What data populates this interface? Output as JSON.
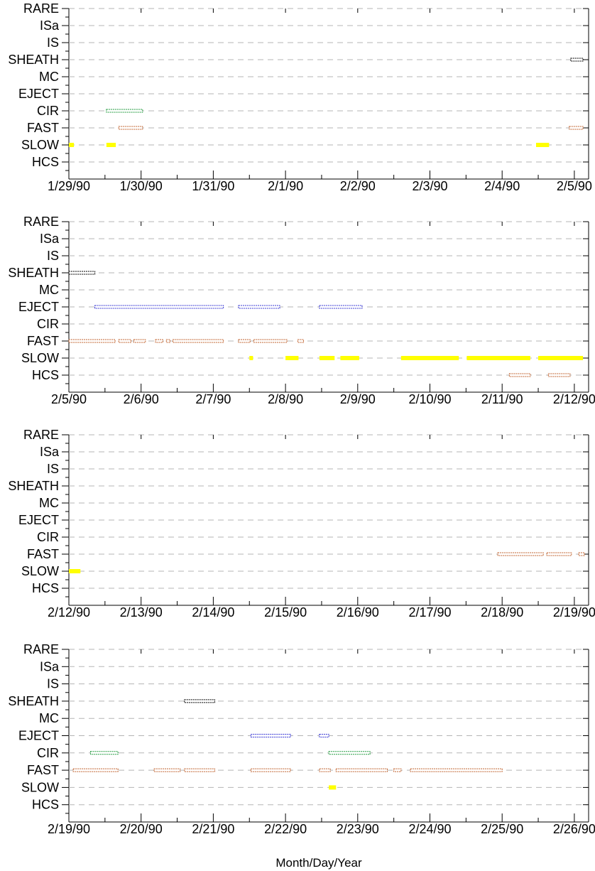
{
  "chart_data": {
    "type": "timeline",
    "categories": [
      "RARE",
      "ISa",
      "IS",
      "SHEATH",
      "MC",
      "EJECT",
      "CIR",
      "FAST",
      "SLOW",
      "HCS"
    ],
    "xlabel": "Month/Day/Year",
    "grid": true,
    "colors": {
      "SHEATH": "#000000",
      "EJECT": "#3b3bd6",
      "CIR": "#1f9a3c",
      "FAST": "#c0622d",
      "SLOW": "#ffff00",
      "HCS": "#c0622d"
    },
    "panels": [
      {
        "ticks": [
          "1/29/90",
          "1/30/90",
          "1/31/90",
          "2/1/90",
          "2/2/90",
          "2/3/90",
          "2/4/90",
          "2/5/90"
        ],
        "intervals": [
          {
            "cat": "SHEATH",
            "start": 6.95,
            "end": 7.12
          },
          {
            "cat": "CIR",
            "start": 0.52,
            "end": 1.02
          },
          {
            "cat": "FAST",
            "start": 0.69,
            "end": 1.02
          },
          {
            "cat": "FAST",
            "start": 6.93,
            "end": 7.12
          },
          {
            "cat": "SLOW",
            "start": 0.0,
            "end": 0.07
          },
          {
            "cat": "SLOW",
            "start": 0.52,
            "end": 0.65
          },
          {
            "cat": "SLOW",
            "start": 6.47,
            "end": 6.65
          }
        ]
      },
      {
        "ticks": [
          "2/5/90",
          "2/6/90",
          "2/7/90",
          "2/8/90",
          "2/9/90",
          "2/10/90",
          "2/11/90",
          "2/12/90"
        ],
        "intervals": [
          {
            "cat": "SHEATH",
            "start": 0.0,
            "end": 0.36
          },
          {
            "cat": "EJECT",
            "start": 0.36,
            "end": 2.14
          },
          {
            "cat": "EJECT",
            "start": 2.35,
            "end": 2.92
          },
          {
            "cat": "EJECT",
            "start": 3.47,
            "end": 4.06
          },
          {
            "cat": "FAST",
            "start": 0.0,
            "end": 0.64
          },
          {
            "cat": "FAST",
            "start": 0.69,
            "end": 0.86
          },
          {
            "cat": "FAST",
            "start": 0.9,
            "end": 1.06
          },
          {
            "cat": "FAST",
            "start": 1.2,
            "end": 1.3
          },
          {
            "cat": "FAST",
            "start": 1.35,
            "end": 1.4
          },
          {
            "cat": "FAST",
            "start": 1.44,
            "end": 2.14
          },
          {
            "cat": "FAST",
            "start": 2.35,
            "end": 2.51
          },
          {
            "cat": "FAST",
            "start": 2.56,
            "end": 3.02
          },
          {
            "cat": "FAST",
            "start": 3.17,
            "end": 3.25
          },
          {
            "cat": "SLOW",
            "start": 2.5,
            "end": 2.55
          },
          {
            "cat": "SLOW",
            "start": 3.0,
            "end": 3.18
          },
          {
            "cat": "SLOW",
            "start": 3.47,
            "end": 3.68
          },
          {
            "cat": "SLOW",
            "start": 3.76,
            "end": 4.02
          },
          {
            "cat": "SLOW",
            "start": 4.6,
            "end": 5.4
          },
          {
            "cat": "SLOW",
            "start": 5.51,
            "end": 6.39
          },
          {
            "cat": "SLOW",
            "start": 6.5,
            "end": 7.12
          },
          {
            "cat": "HCS",
            "start": 6.1,
            "end": 6.39
          },
          {
            "cat": "HCS",
            "start": 6.64,
            "end": 6.94
          }
        ]
      },
      {
        "ticks": [
          "2/12/90",
          "2/13/90",
          "2/14/90",
          "2/15/90",
          "2/16/90",
          "2/17/90",
          "2/18/90",
          "2/19/90"
        ],
        "intervals": [
          {
            "cat": "FAST",
            "start": 5.94,
            "end": 6.57
          },
          {
            "cat": "FAST",
            "start": 6.62,
            "end": 6.96
          },
          {
            "cat": "FAST",
            "start": 7.06,
            "end": 7.14
          },
          {
            "cat": "SLOW",
            "start": 0.0,
            "end": 0.16
          }
        ]
      },
      {
        "ticks": [
          "2/19/90",
          "2/20/90",
          "2/21/90",
          "2/22/90",
          "2/23/90",
          "2/24/90",
          "2/25/90",
          "2/26/90"
        ],
        "intervals": [
          {
            "cat": "SHEATH",
            "start": 1.6,
            "end": 2.02
          },
          {
            "cat": "EJECT",
            "start": 2.52,
            "end": 3.07
          },
          {
            "cat": "EJECT",
            "start": 3.47,
            "end": 3.6
          },
          {
            "cat": "CIR",
            "start": 0.3,
            "end": 0.68
          },
          {
            "cat": "CIR",
            "start": 3.6,
            "end": 4.17
          },
          {
            "cat": "FAST",
            "start": 0.06,
            "end": 0.68
          },
          {
            "cat": "FAST",
            "start": 1.18,
            "end": 1.54
          },
          {
            "cat": "FAST",
            "start": 1.6,
            "end": 2.02
          },
          {
            "cat": "FAST",
            "start": 2.52,
            "end": 3.07
          },
          {
            "cat": "FAST",
            "start": 3.47,
            "end": 3.62
          },
          {
            "cat": "FAST",
            "start": 3.7,
            "end": 4.41
          },
          {
            "cat": "FAST",
            "start": 4.5,
            "end": 4.6
          },
          {
            "cat": "FAST",
            "start": 4.73,
            "end": 6.0
          },
          {
            "cat": "SLOW",
            "start": 3.6,
            "end": 3.7
          }
        ]
      }
    ]
  }
}
